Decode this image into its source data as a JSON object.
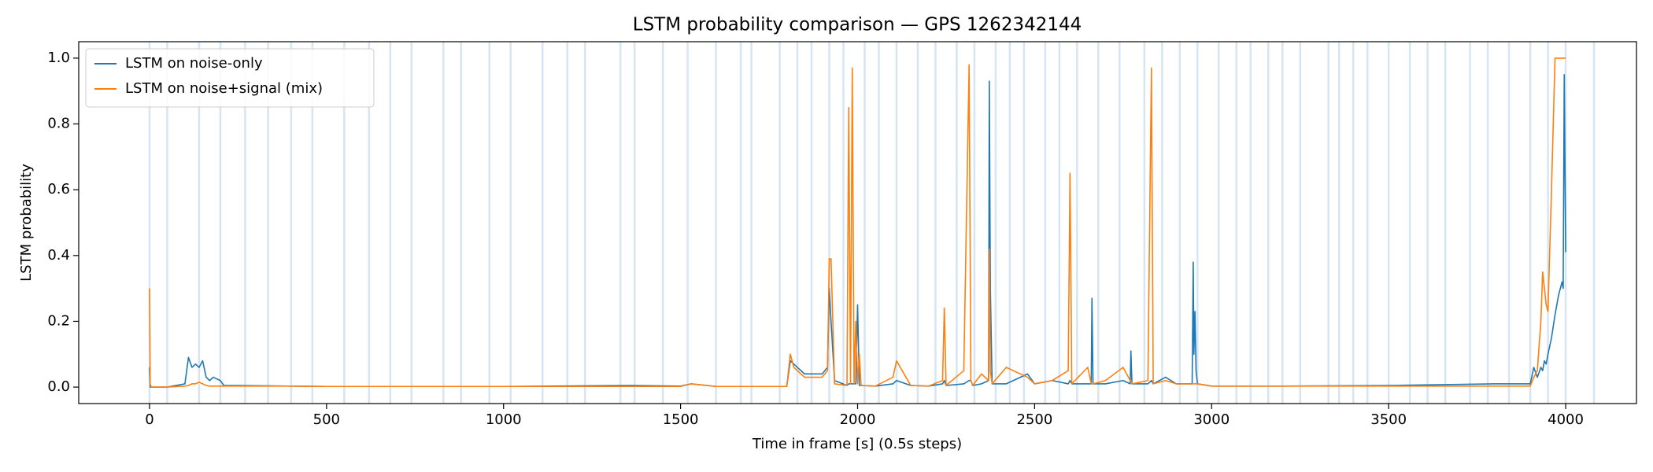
{
  "chart_data": {
    "type": "line",
    "title": "LSTM probability comparison — GPS 1262342144",
    "xlabel": "Time in frame [s] (0.5s steps)",
    "ylabel": "LSTM probability",
    "xlim": [
      -200,
      4200
    ],
    "ylim": [
      -0.05,
      1.05
    ],
    "xticks": [
      0,
      500,
      1000,
      1500,
      2000,
      2500,
      3000,
      3500,
      4000
    ],
    "yticks": [
      {
        "value": 0,
        "label": "0.0"
      },
      {
        "value": 0.2,
        "label": "0.2"
      },
      {
        "value": 0.4,
        "label": "0.4"
      },
      {
        "value": 0.6,
        "label": "0.6"
      },
      {
        "value": 0.8,
        "label": "0.8"
      },
      {
        "value": 1,
        "label": "1.0"
      }
    ],
    "legend": "upper left",
    "vlines": {
      "color": "#c6dbef",
      "x": [
        0,
        50,
        140,
        200,
        270,
        335,
        400,
        460,
        550,
        620,
        680,
        740,
        830,
        880,
        960,
        1020,
        1110,
        1180,
        1230,
        1330,
        1370,
        1450,
        1520,
        1600,
        1670,
        1700,
        1780,
        1830,
        1870,
        1920,
        1960,
        2020,
        2060,
        2110,
        2170,
        2220,
        2280,
        2330,
        2390,
        2430,
        2470,
        2530,
        2570,
        2620,
        2680,
        2740,
        2810,
        2860,
        2910,
        2960,
        3020,
        3070,
        3110,
        3160,
        3200,
        3250,
        3330,
        3360,
        3400,
        3440,
        3500,
        3560,
        3610,
        3660,
        3730,
        3780,
        3840,
        3900,
        3950,
        4000,
        4080
      ]
    },
    "x": [
      0,
      2,
      5,
      50,
      100,
      110,
      120,
      130,
      140,
      150,
      160,
      170,
      180,
      200,
      210,
      250,
      400,
      500,
      800,
      1000,
      1360,
      1500,
      1530,
      1600,
      1800,
      1810,
      1820,
      1850,
      1900,
      1915,
      1920,
      1925,
      1935,
      1970,
      1975,
      1980,
      1985,
      1990,
      1995,
      2000,
      2005,
      2010,
      2050,
      2100,
      2110,
      2150,
      2200,
      2240,
      2245,
      2250,
      2300,
      2315,
      2320,
      2325,
      2350,
      2370,
      2372,
      2375,
      2380,
      2420,
      2480,
      2500,
      2550,
      2595,
      2600,
      2605,
      2650,
      2660,
      2662,
      2665,
      2700,
      2750,
      2770,
      2772,
      2775,
      2820,
      2830,
      2835,
      2870,
      2900,
      2945,
      2948,
      2950,
      2953,
      2956,
      2960,
      3000,
      3200,
      3500,
      3800,
      3900,
      3910,
      3920,
      3930,
      3935,
      3940,
      3945,
      3950,
      3960,
      3970,
      3980,
      3990,
      3993,
      3996,
      4000
    ],
    "series": [
      {
        "name": "LSTM on noise-only",
        "color": "#1f77b4",
        "values": [
          0.06,
          0,
          0,
          0,
          0.01,
          0.09,
          0.06,
          0.07,
          0.06,
          0.08,
          0.03,
          0.02,
          0.03,
          0.02,
          0.005,
          0.005,
          0.003,
          0.002,
          0.002,
          0.002,
          0.005,
          0.003,
          0.01,
          0.002,
          0.002,
          0.08,
          0.07,
          0.04,
          0.04,
          0.06,
          0.3,
          0.2,
          0.02,
          0.005,
          0.01,
          0.01,
          0.01,
          0.01,
          0.01,
          0.25,
          0.005,
          0.005,
          0.003,
          0.01,
          0.02,
          0.005,
          0.003,
          0.01,
          0.02,
          0.005,
          0.01,
          0.02,
          0.02,
          0.005,
          0.01,
          0.02,
          0.93,
          0.3,
          0.01,
          0.01,
          0.04,
          0.01,
          0.02,
          0.01,
          0.02,
          0.01,
          0.01,
          0.01,
          0.27,
          0.01,
          0.01,
          0.02,
          0.01,
          0.11,
          0.01,
          0.01,
          0.02,
          0.01,
          0.03,
          0.01,
          0.01,
          0.38,
          0.1,
          0.23,
          0.05,
          0.01,
          0.003,
          0.003,
          0.005,
          0.01,
          0.01,
          0.06,
          0.03,
          0.06,
          0.05,
          0.08,
          0.07,
          0.1,
          0.15,
          0.22,
          0.28,
          0.32,
          0.3,
          0.95,
          0.41
        ]
      },
      {
        "name": "LSTM on noise+signal (mix)",
        "color": "#ff7f0e",
        "values": [
          0.3,
          0.01,
          0,
          0,
          0.003,
          0.005,
          0.01,
          0.01,
          0.015,
          0.01,
          0.005,
          0.003,
          0.003,
          0.003,
          0.003,
          0.003,
          0.003,
          0.002,
          0.002,
          0.002,
          0.002,
          0.002,
          0.01,
          0.002,
          0.002,
          0.1,
          0.06,
          0.03,
          0.03,
          0.05,
          0.39,
          0.39,
          0.01,
          0.005,
          0.85,
          0.01,
          0.97,
          0.01,
          0.2,
          0.01,
          0.1,
          0.005,
          0.003,
          0.03,
          0.08,
          0.005,
          0.003,
          0.02,
          0.24,
          0.005,
          0.05,
          0.98,
          0.02,
          0.005,
          0.04,
          0.02,
          0.42,
          0.05,
          0.01,
          0.06,
          0.03,
          0.01,
          0.02,
          0.05,
          0.65,
          0.01,
          0.06,
          0.01,
          0.01,
          0.01,
          0.02,
          0.06,
          0.02,
          0.02,
          0.01,
          0.02,
          0.97,
          0.01,
          0.02,
          0.01,
          0.01,
          0.01,
          0.01,
          0.01,
          0.01,
          0.01,
          0.003,
          0.003,
          0.003,
          0.003,
          0.003,
          0.03,
          0.05,
          0.2,
          0.35,
          0.3,
          0.25,
          0.23,
          0.6,
          1.0,
          1.0,
          1.0,
          1.0,
          1.0,
          1.0
        ]
      }
    ]
  }
}
